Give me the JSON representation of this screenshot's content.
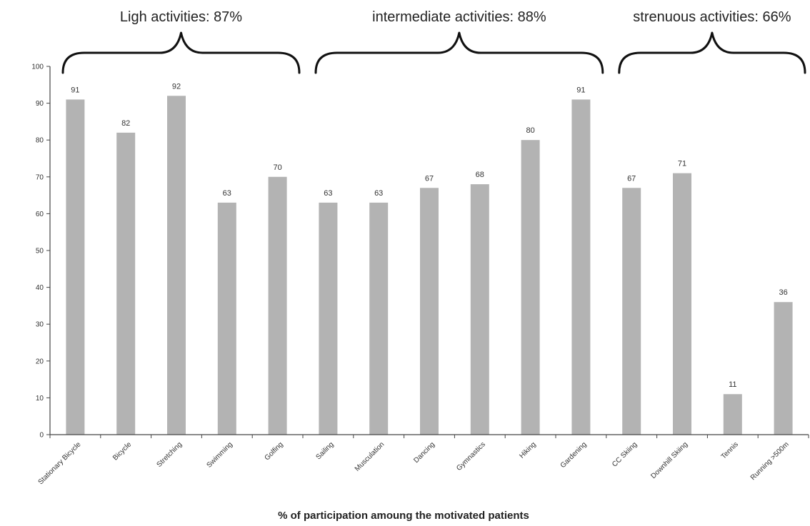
{
  "chart_data": {
    "type": "bar",
    "title": "",
    "xlabel": "% of participation amoung the motivated patients",
    "ylabel": "",
    "ylim": [
      0,
      100
    ],
    "yticks": [
      0,
      10,
      20,
      30,
      40,
      50,
      60,
      70,
      80,
      90,
      100
    ],
    "grid": false,
    "bar_color": "#b3b3b3",
    "categories": [
      "Stationary Bicycle",
      "Bicycle",
      "Stretching",
      "Swimming",
      "Golfing",
      "Sailing",
      "Musculation",
      "Dancing",
      "Gymnastics",
      "Hiking",
      "Gardening",
      "CC Skiing",
      "Downhill Skiing",
      "Tennis",
      "Running >500m"
    ],
    "values": [
      91,
      82,
      92,
      63,
      70,
      63,
      63,
      67,
      68,
      80,
      91,
      67,
      71,
      11,
      36
    ],
    "groups": [
      {
        "label": "Ligh activities: 87%",
        "start": 0,
        "end": 4
      },
      {
        "label": "intermediate activities: 88%",
        "start": 5,
        "end": 10
      },
      {
        "label": "strenuous activities: 66%",
        "start": 11,
        "end": 14
      }
    ]
  }
}
